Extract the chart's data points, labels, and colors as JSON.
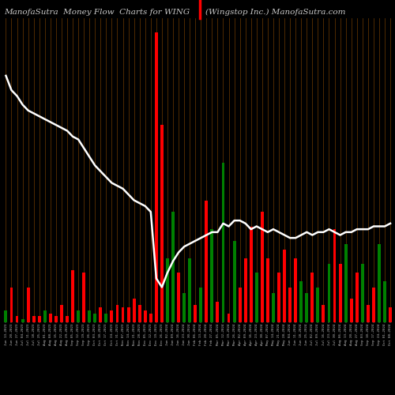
{
  "title_left": "ManofaSutra  Money Flow  Charts for WING",
  "title_right": "(Wingstop Inc.) ManofaSutra.com",
  "background_color": "#000000",
  "bar_colors": [
    "green",
    "red",
    "red",
    "green",
    "red",
    "red",
    "red",
    "green",
    "red",
    "red",
    "red",
    "red",
    "red",
    "green",
    "red",
    "green",
    "green",
    "red",
    "green",
    "red",
    "red",
    "red",
    "red",
    "red",
    "red",
    "red",
    "red",
    "red",
    "red",
    "green",
    "green",
    "red",
    "green",
    "green",
    "red",
    "green",
    "red",
    "green",
    "red",
    "green",
    "red",
    "green",
    "red",
    "red",
    "red",
    "green",
    "red",
    "red",
    "green",
    "red",
    "red",
    "red",
    "red",
    "green",
    "green",
    "red",
    "green",
    "red",
    "green",
    "red",
    "red",
    "green",
    "red",
    "red",
    "green",
    "red",
    "red",
    "green",
    "green",
    "red"
  ],
  "bar_values": [
    4,
    12,
    2,
    1,
    12,
    2,
    2,
    4,
    3,
    2,
    6,
    2,
    18,
    4,
    17,
    4,
    3,
    5,
    3,
    4,
    6,
    5,
    5,
    8,
    6,
    4,
    3,
    100,
    68,
    22,
    38,
    17,
    10,
    22,
    6,
    12,
    42,
    32,
    7,
    55,
    3,
    28,
    12,
    22,
    33,
    17,
    38,
    22,
    10,
    17,
    25,
    12,
    22,
    14,
    10,
    17,
    12,
    6,
    20,
    32,
    20,
    27,
    8,
    17,
    20,
    6,
    12,
    27,
    14,
    5
  ],
  "line_values": [
    85,
    80,
    78,
    75,
    73,
    72,
    71,
    70,
    69,
    68,
    67,
    66,
    64,
    63,
    60,
    57,
    54,
    52,
    50,
    48,
    47,
    46,
    44,
    42,
    41,
    40,
    38,
    15,
    12,
    17,
    21,
    24,
    26,
    27,
    28,
    29,
    30,
    31,
    31,
    34,
    33,
    35,
    35,
    34,
    32,
    33,
    32,
    31,
    32,
    31,
    30,
    29,
    29,
    30,
    31,
    30,
    31,
    31,
    32,
    31,
    30,
    31,
    31,
    32,
    32,
    32,
    33,
    33,
    33,
    34
  ],
  "line_color": "#ffffff",
  "separator_color": "#5c3000",
  "title_color": "#c8c8c8",
  "title_fontsize": 7.5,
  "n_bars": 70,
  "xlabels": [
    "Jun 13,2023",
    "Jun 20,2023",
    "Jun 27,2023",
    "Jul 04,2023",
    "Jul 11,2023",
    "Jul 18,2023",
    "Jul 25,2023",
    "Aug 01,2023",
    "Aug 08,2023",
    "Aug 15,2023",
    "Aug 22,2023",
    "Aug 29,2023",
    "Sep 05,2023",
    "Sep 12,2023",
    "Sep 19,2023",
    "Sep 26,2023",
    "Oct 03,2023",
    "Oct 10,2023",
    "Oct 17,2023",
    "Oct 24,2023",
    "Oct 31,2023",
    "Nov 07,2023",
    "Nov 14,2023",
    "Nov 21,2023",
    "Nov 28,2023",
    "Dec 05,2023",
    "Dec 12,2023",
    "Dec 19,2023",
    "Dec 26,2023",
    "Jan 02,2024",
    "Jan 09,2024",
    "Jan 16,2024",
    "Jan 23,2024",
    "Jan 30,2024",
    "Feb 06,2024",
    "Feb 13,2024",
    "Feb 20,2024",
    "Feb 27,2024",
    "Mar 05,2024",
    "Mar 12,2024",
    "Mar 19,2024",
    "Mar 26,2024",
    "Apr 02,2024",
    "Apr 09,2024",
    "Apr 16,2024",
    "Apr 23,2024",
    "Apr 30,2024",
    "May 07,2024",
    "May 14,2024",
    "May 21,2024",
    "May 28,2024",
    "Jun 04,2024",
    "Jun 11,2024",
    "Jun 18,2024",
    "Jun 25,2024",
    "Jul 02,2024",
    "Jul 09,2024",
    "Jul 16,2024",
    "Jul 23,2024",
    "Jul 30,2024",
    "Aug 06,2024",
    "Aug 13,2024",
    "Aug 20,2024",
    "Aug 27,2024",
    "Sep 03,2024",
    "Sep 10,2024",
    "Sep 17,2024",
    "Sep 24,2024",
    "Oct 01,2024",
    "Oct 08,2024"
  ]
}
